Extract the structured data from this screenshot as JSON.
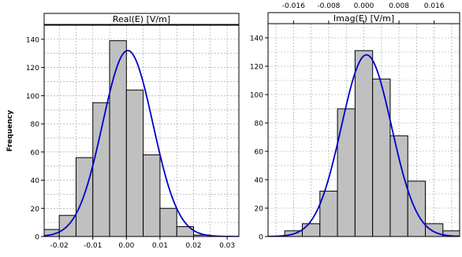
{
  "figure": {
    "ylabel": "Frequency"
  },
  "chart_data": [
    {
      "type": "bar",
      "subtype": "histogram-with-density-curve",
      "title": "Real(E) [V/m]",
      "xlabel": "",
      "ylabel": "Frequency",
      "xlim": [
        -0.0245,
        0.0335
      ],
      "ylim": [
        0,
        150
      ],
      "xticks": [
        -0.02,
        -0.01,
        0.0,
        0.01,
        0.02,
        0.03
      ],
      "xtick_labels": [
        "-0.02",
        "-0.01",
        "0.00",
        "0.01",
        "0.02",
        "0.03"
      ],
      "yticks": [
        0,
        20,
        40,
        60,
        80,
        100,
        120,
        140
      ],
      "ytick_labels": [
        "0",
        "20",
        "40",
        "60",
        "80",
        "100",
        "120",
        "140"
      ],
      "xtick_position": "bottom",
      "ytick_position": "left",
      "grid": true,
      "bin_edges": [
        -0.025,
        -0.02,
        -0.015,
        -0.01,
        -0.005,
        0.0,
        0.005,
        0.01,
        0.015,
        0.02,
        0.025
      ],
      "values": [
        5,
        15,
        56,
        95,
        139,
        104,
        58,
        20,
        7,
        1
      ],
      "bar_color": "#c0c0c0",
      "curve": {
        "type": "normal",
        "mean": 0.0004,
        "std": 0.0075,
        "peak": 132,
        "color": "#0000cc"
      }
    },
    {
      "type": "bar",
      "subtype": "histogram-with-density-curve",
      "title": "Imag(E) [V/m]",
      "xlabel": "",
      "ylabel": "",
      "xlim": [
        -0.0218,
        0.0218
      ],
      "ylim": [
        0,
        150
      ],
      "xticks": [
        -0.016,
        -0.008,
        0.0,
        0.008,
        0.016
      ],
      "xtick_labels": [
        "-0.016",
        "-0.008",
        "0.000",
        "0.008",
        "0.016"
      ],
      "yticks": [
        0,
        20,
        40,
        60,
        80,
        100,
        120,
        140
      ],
      "ytick_labels": [
        "0",
        "20",
        "40",
        "60",
        "80",
        "100",
        "120",
        "140"
      ],
      "xtick_position": "top",
      "ytick_position": "left",
      "grid": true,
      "bin_edges": [
        -0.018,
        -0.014,
        -0.01,
        -0.006,
        -0.002,
        0.002,
        0.006,
        0.01,
        0.014,
        0.018,
        0.022
      ],
      "values": [
        4,
        9,
        32,
        90,
        131,
        111,
        71,
        39,
        9,
        4
      ],
      "bar_color": "#c0c0c0",
      "curve": {
        "type": "normal",
        "mean": 0.0006,
        "std": 0.0057,
        "peak": 128,
        "color": "#0000cc"
      }
    }
  ]
}
